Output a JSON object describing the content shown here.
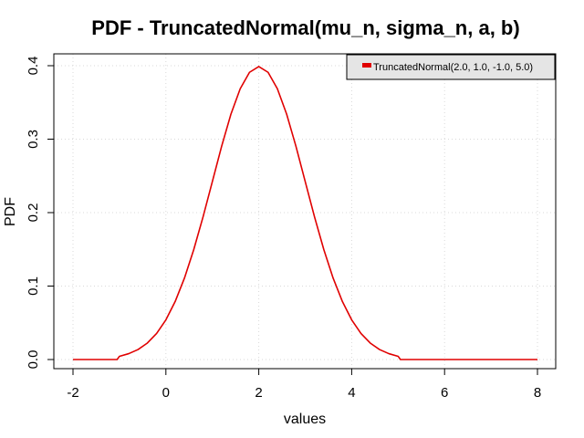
{
  "chart_data": {
    "type": "line",
    "title": "PDF - TruncatedNormal(mu_n, sigma_n, a, b)",
    "xlabel": "values",
    "ylabel": "PDF",
    "xlim": [
      -2,
      8
    ],
    "ylim": [
      0,
      0.4
    ],
    "x_ticks": [
      -2,
      0,
      2,
      4,
      6,
      8
    ],
    "x_tick_labels": [
      "-2",
      "0",
      "2",
      "4",
      "6",
      "8"
    ],
    "y_ticks": [
      0.0,
      0.1,
      0.2,
      0.3,
      0.4
    ],
    "y_tick_labels": [
      "0.0",
      "0.1",
      "0.2",
      "0.3",
      "0.4"
    ],
    "grid": true,
    "legend_position": "top-right",
    "series": [
      {
        "name": "TruncatedNormal(2.0, 1.0, -1.0, 5.0)",
        "color": "#e00000",
        "x": [
          -2.0,
          -1.05,
          -1.0,
          -0.8,
          -0.6,
          -0.4,
          -0.2,
          0.0,
          0.2,
          0.4,
          0.6,
          0.8,
          1.0,
          1.2,
          1.4,
          1.6,
          1.8,
          2.0,
          2.2,
          2.4,
          2.6,
          2.8,
          3.0,
          3.2,
          3.4,
          3.6,
          3.8,
          4.0,
          4.2,
          4.4,
          4.6,
          4.8,
          5.0,
          5.05,
          8.0
        ],
        "y": [
          0.0,
          0.0,
          0.0044,
          0.008,
          0.0136,
          0.0224,
          0.0355,
          0.054,
          0.079,
          0.1109,
          0.1497,
          0.1942,
          0.2422,
          0.2903,
          0.334,
          0.3686,
          0.391,
          0.3988,
          0.391,
          0.3686,
          0.334,
          0.2903,
          0.2422,
          0.1942,
          0.1497,
          0.1109,
          0.079,
          0.054,
          0.0355,
          0.0224,
          0.0136,
          0.008,
          0.0044,
          0.0,
          0.0
        ]
      }
    ]
  }
}
